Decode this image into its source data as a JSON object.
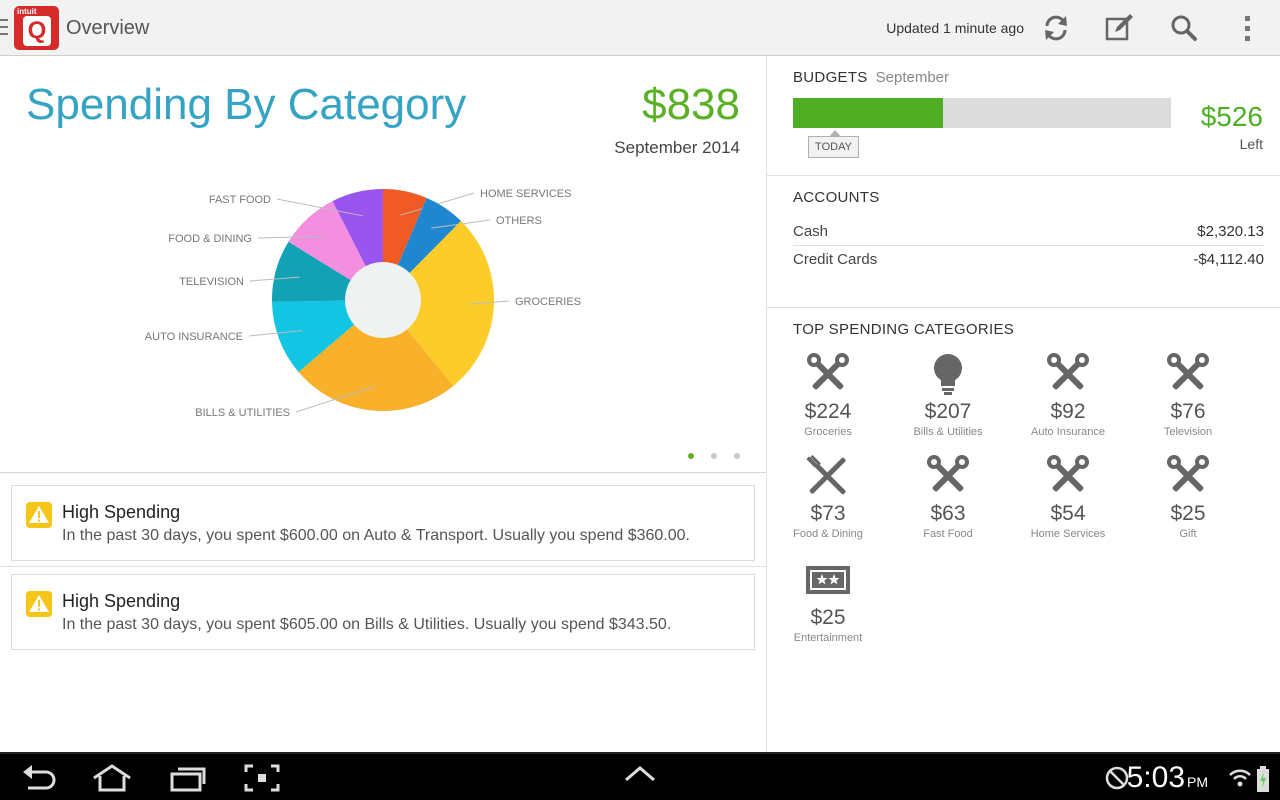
{
  "header": {
    "app_title": "Overview",
    "logo_small": "intuit",
    "logo_letter": "Q",
    "updated": "Updated 1 minute ago",
    "icons": [
      "refresh-icon",
      "edit-icon",
      "search-icon",
      "overflow-menu-icon"
    ]
  },
  "chart_data": {
    "type": "pie",
    "title": "Spending By Category",
    "total": "$838",
    "period": "September 2014",
    "slices": [
      {
        "label": "HOME SERVICES",
        "value": 54,
        "color": "#f05a24"
      },
      {
        "label": "OTHERS",
        "value": 50,
        "color": "#1f86d0"
      },
      {
        "label": "GROCERIES",
        "value": 224,
        "color": "#fbcc2a"
      },
      {
        "label": "BILLS & UTILITIES",
        "value": 207,
        "color": "#f9b02b"
      },
      {
        "label": "AUTO INSURANCE",
        "value": 92,
        "color": "#12c5e2"
      },
      {
        "label": "TELEVISION",
        "value": 76,
        "color": "#11a2b6"
      },
      {
        "label": "FOOD & DINING",
        "value": 73,
        "color": "#f48ee0"
      },
      {
        "label": "FAST FOOD",
        "value": 63,
        "color": "#9b55ef"
      }
    ]
  },
  "pager": {
    "count": 3,
    "active": 0
  },
  "alerts": [
    {
      "title": "High Spending",
      "body": "In the past 30 days, you spent $600.00 on Auto & Transport.  Usually you spend $360.00."
    },
    {
      "title": "High Spending",
      "body": "In the past 30 days, you spent $605.00 on Bills & Utilities.  Usually you spend $343.50."
    }
  ],
  "budgets": {
    "title": "BUDGETS",
    "month": "September",
    "spent_fraction": 0.397,
    "today_label": "TODAY",
    "left_amount": "$526",
    "left_label": "Left",
    "fill_color": "#4fae24"
  },
  "accounts": {
    "title": "ACCOUNTS",
    "items": [
      {
        "name": "Cash",
        "value": "$2,320.13"
      },
      {
        "name": "Credit Cards",
        "value": "-$4,112.40"
      }
    ]
  },
  "top_categories": {
    "title": "TOP SPENDING CATEGORIES",
    "items": [
      {
        "amount": "$224",
        "label": "Groceries",
        "icon": "tools-icon"
      },
      {
        "amount": "$207",
        "label": "Bills & Utilities",
        "icon": "lightbulb-icon"
      },
      {
        "amount": "$92",
        "label": "Auto Insurance",
        "icon": "tools-icon"
      },
      {
        "amount": "$76",
        "label": "Television",
        "icon": "tools-icon"
      },
      {
        "amount": "$73",
        "label": "Food & Dining",
        "icon": "fork-knife-icon"
      },
      {
        "amount": "$63",
        "label": "Fast Food",
        "icon": "tools-icon"
      },
      {
        "amount": "$54",
        "label": "Home Services",
        "icon": "tools-icon"
      },
      {
        "amount": "$25",
        "label": "Gift",
        "icon": "tools-icon"
      },
      {
        "amount": "$25",
        "label": "Entertainment",
        "icon": "ticket-icon"
      }
    ]
  },
  "system": {
    "time": "5:03",
    "ampm": "PM"
  }
}
